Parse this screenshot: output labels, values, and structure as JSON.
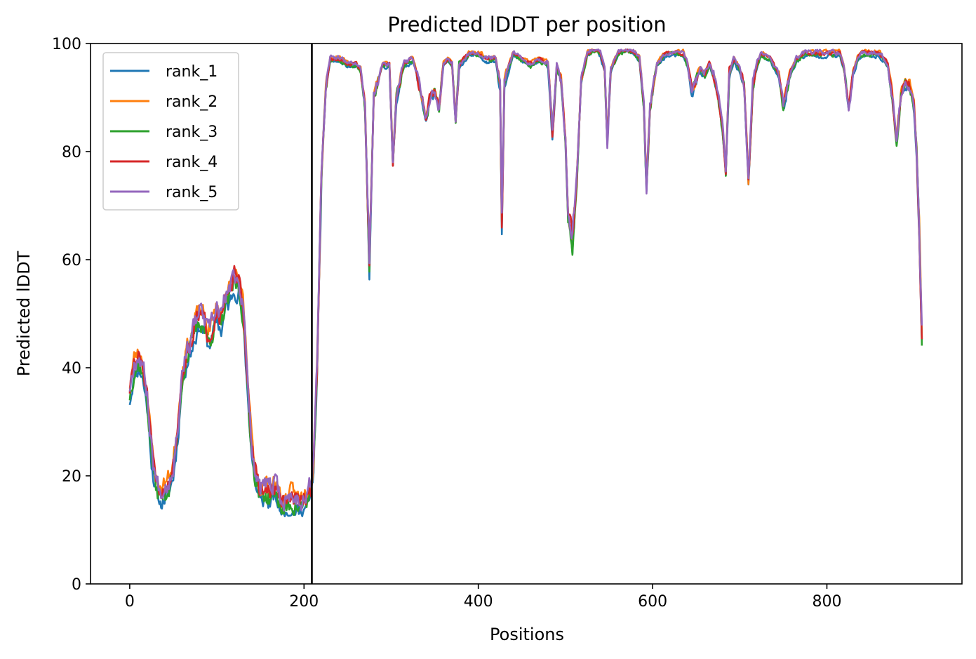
{
  "chart_data": {
    "type": "line",
    "title": "Predicted lDDT per position",
    "xlabel": "Positions",
    "ylabel": "Predicted lDDT",
    "xlim": [
      -45,
      955
    ],
    "ylim": [
      0,
      100
    ],
    "xticks": [
      0,
      200,
      400,
      600,
      800
    ],
    "yticks": [
      0,
      20,
      40,
      60,
      80,
      100
    ],
    "grid": false,
    "legend_position": "top-left",
    "vertical_line_x": 209,
    "colors": [
      "#1f77b4",
      "#ff7f0e",
      "#2ca02c",
      "#d62728",
      "#9467bd"
    ],
    "x_range": [
      0,
      909
    ],
    "base_profile": [
      [
        0,
        35
      ],
      [
        5,
        40
      ],
      [
        10,
        41
      ],
      [
        14,
        40
      ],
      [
        20,
        34
      ],
      [
        25,
        24
      ],
      [
        30,
        18
      ],
      [
        35,
        16
      ],
      [
        40,
        17
      ],
      [
        45,
        18
      ],
      [
        50,
        21
      ],
      [
        55,
        28
      ],
      [
        60,
        38
      ],
      [
        65,
        42
      ],
      [
        70,
        44
      ],
      [
        75,
        47
      ],
      [
        80,
        49
      ],
      [
        85,
        48
      ],
      [
        90,
        45
      ],
      [
        95,
        47
      ],
      [
        100,
        50
      ],
      [
        105,
        48
      ],
      [
        110,
        52
      ],
      [
        115,
        53
      ],
      [
        120,
        56
      ],
      [
        125,
        55
      ],
      [
        130,
        50
      ],
      [
        135,
        37
      ],
      [
        140,
        25
      ],
      [
        145,
        19
      ],
      [
        150,
        16
      ],
      [
        155,
        17
      ],
      [
        160,
        16
      ],
      [
        165,
        17
      ],
      [
        170,
        16
      ],
      [
        175,
        14
      ],
      [
        180,
        14
      ],
      [
        185,
        15
      ],
      [
        190,
        15
      ],
      [
        195,
        14
      ],
      [
        200,
        15
      ],
      [
        205,
        16
      ],
      [
        208,
        17
      ],
      [
        211,
        22
      ],
      [
        215,
        40
      ],
      [
        220,
        75
      ],
      [
        225,
        92
      ],
      [
        230,
        97
      ],
      [
        240,
        97
      ],
      [
        250,
        96
      ],
      [
        260,
        96
      ],
      [
        265,
        95
      ],
      [
        270,
        88
      ],
      [
        275,
        58
      ],
      [
        280,
        90
      ],
      [
        290,
        96
      ],
      [
        298,
        96
      ],
      [
        302,
        78
      ],
      [
        306,
        90
      ],
      [
        315,
        96
      ],
      [
        325,
        97
      ],
      [
        330,
        94
      ],
      [
        335,
        90
      ],
      [
        340,
        86
      ],
      [
        345,
        90
      ],
      [
        350,
        91
      ],
      [
        355,
        88
      ],
      [
        360,
        96
      ],
      [
        365,
        97
      ],
      [
        370,
        96
      ],
      [
        374,
        85
      ],
      [
        378,
        96
      ],
      [
        390,
        98
      ],
      [
        400,
        98
      ],
      [
        410,
        97
      ],
      [
        420,
        97
      ],
      [
        425,
        92
      ],
      [
        427,
        66
      ],
      [
        430,
        93
      ],
      [
        440,
        98
      ],
      [
        450,
        97
      ],
      [
        460,
        96
      ],
      [
        470,
        97
      ],
      [
        480,
        96
      ],
      [
        485,
        83
      ],
      [
        490,
        96
      ],
      [
        495,
        93
      ],
      [
        500,
        82
      ],
      [
        503,
        68
      ],
      [
        508,
        63
      ],
      [
        513,
        75
      ],
      [
        518,
        93
      ],
      [
        525,
        98
      ],
      [
        535,
        99
      ],
      [
        540,
        98
      ],
      [
        545,
        95
      ],
      [
        548,
        81
      ],
      [
        552,
        95
      ],
      [
        560,
        98
      ],
      [
        570,
        99
      ],
      [
        580,
        98
      ],
      [
        585,
        97
      ],
      [
        590,
        88
      ],
      [
        593,
        73
      ],
      [
        597,
        88
      ],
      [
        605,
        96
      ],
      [
        615,
        98
      ],
      [
        625,
        98
      ],
      [
        635,
        98
      ],
      [
        640,
        96
      ],
      [
        645,
        91
      ],
      [
        650,
        93
      ],
      [
        655,
        95
      ],
      [
        660,
        94
      ],
      [
        665,
        96
      ],
      [
        670,
        94
      ],
      [
        675,
        90
      ],
      [
        680,
        84
      ],
      [
        684,
        76
      ],
      [
        688,
        94
      ],
      [
        693,
        97
      ],
      [
        700,
        95
      ],
      [
        705,
        92
      ],
      [
        710,
        74
      ],
      [
        715,
        92
      ],
      [
        720,
        96
      ],
      [
        725,
        98
      ],
      [
        735,
        97
      ],
      [
        745,
        94
      ],
      [
        750,
        88
      ],
      [
        755,
        92
      ],
      [
        760,
        95
      ],
      [
        765,
        97
      ],
      [
        775,
        98
      ],
      [
        785,
        98
      ],
      [
        795,
        98
      ],
      [
        805,
        98
      ],
      [
        815,
        98
      ],
      [
        820,
        95
      ],
      [
        825,
        88
      ],
      [
        830,
        94
      ],
      [
        835,
        97
      ],
      [
        840,
        98
      ],
      [
        850,
        98
      ],
      [
        860,
        98
      ],
      [
        870,
        96
      ],
      [
        875,
        90
      ],
      [
        880,
        82
      ],
      [
        885,
        90
      ],
      [
        890,
        93
      ],
      [
        895,
        92
      ],
      [
        900,
        88
      ],
      [
        903,
        80
      ],
      [
        906,
        65
      ],
      [
        909,
        45
      ]
    ],
    "series": [
      {
        "name": "rank_1",
        "color": "#1f77b4",
        "offset": -0.8,
        "jitter_amp": 1.8,
        "seed": 11
      },
      {
        "name": "rank_2",
        "color": "#ff7f0e",
        "offset": 1.2,
        "jitter_amp": 1.8,
        "seed": 23
      },
      {
        "name": "rank_3",
        "color": "#2ca02c",
        "offset": -0.2,
        "jitter_amp": 2.0,
        "seed": 37
      },
      {
        "name": "rank_4",
        "color": "#d62728",
        "offset": 0.6,
        "jitter_amp": 1.9,
        "seed": 51
      },
      {
        "name": "rank_5",
        "color": "#9467bd",
        "offset": 0.9,
        "jitter_amp": 2.2,
        "seed": 67
      }
    ]
  }
}
